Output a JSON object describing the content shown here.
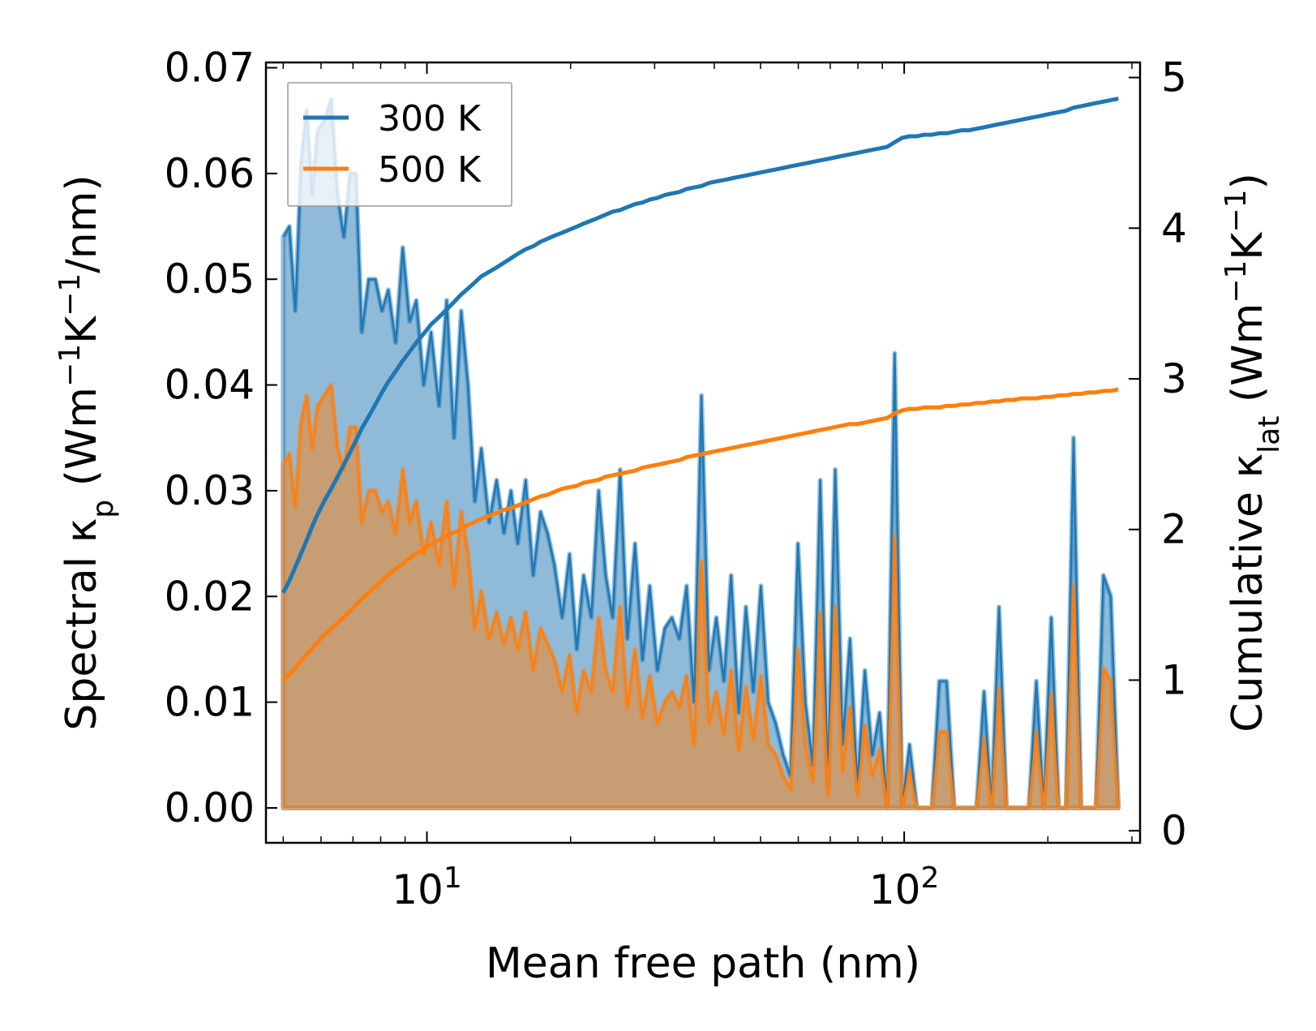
{
  "chart_data": {
    "type": "line",
    "xscale": "log",
    "xlabel": "Mean free path (nm)",
    "ylabel_left": {
      "main": "Spectral κ",
      "sub": "p",
      "unit_open": " (Wm",
      "sup1": "−1",
      "mid": "K",
      "sup2": "−1",
      "unit_close": "/nm)"
    },
    "ylabel_right": {
      "main": "Cumulative κ",
      "sub": "lat",
      "unit_open": " (Wm",
      "sup1": "−1",
      "mid": "K",
      "sup2": "−1",
      "unit_close": ")"
    },
    "xlim": [
      4.6,
      312
    ],
    "ylim_left": [
      -0.0033,
      0.0705
    ],
    "ylim_right": [
      -0.08,
      5.1
    ],
    "x_ticks": [
      {
        "value": 10,
        "base": "10",
        "exp": "1"
      },
      {
        "value": 100,
        "base": "10",
        "exp": "2"
      }
    ],
    "y_left_ticks": [
      "0.00",
      "0.01",
      "0.02",
      "0.03",
      "0.04",
      "0.05",
      "0.06",
      "0.07"
    ],
    "y_left_tick_values": [
      0,
      0.01,
      0.02,
      0.03,
      0.04,
      0.05,
      0.06,
      0.07
    ],
    "y_right_ticks": [
      "0",
      "1",
      "2",
      "3",
      "4",
      "5"
    ],
    "y_right_tick_values": [
      0,
      1,
      2,
      3,
      4,
      5
    ],
    "legend_position": "upper left",
    "series": [
      {
        "name": "300 K",
        "color": "#1f77b4",
        "fill_color": "#1f77b4",
        "x": [
          5.0,
          5.15,
          5.3,
          5.45,
          5.6,
          5.75,
          5.9,
          6.1,
          6.3,
          6.5,
          6.7,
          6.9,
          7.1,
          7.3,
          7.55,
          7.8,
          8.05,
          8.3,
          8.6,
          8.9,
          9.2,
          9.5,
          9.85,
          10.2,
          10.6,
          11.0,
          11.4,
          11.8,
          12.2,
          12.6,
          13.0,
          13.5,
          14.0,
          14.5,
          15.0,
          15.5,
          16.1,
          16.7,
          17.3,
          17.9,
          18.5,
          19.2,
          19.9,
          20.6,
          21.3,
          22.1,
          22.9,
          23.7,
          24.5,
          25.4,
          26.3,
          27.3,
          28.3,
          29.3,
          30.4,
          31.5,
          32.6,
          33.8,
          35.0,
          36.3,
          37.6,
          39.0,
          40.4,
          41.9,
          43.4,
          45.0,
          46.6,
          48.3,
          50.1,
          51.9,
          53.8,
          55.8,
          57.8,
          59.9,
          62.1,
          64.4,
          66.7,
          69.2,
          71.7,
          74.3,
          77.0,
          79.8,
          82.7,
          85.7,
          88.8,
          92.1,
          95.5,
          99.0,
          102.6,
          106.3,
          110.2,
          114.3,
          118.5,
          122.8,
          127.3,
          132.0,
          136.8,
          141.8,
          147.0,
          152.4,
          158.0,
          163.8,
          169.8,
          176.0,
          182.5,
          189.2,
          196.1,
          203.3,
          210.7,
          218.4,
          226.4,
          234.7,
          243.3,
          252.2,
          261.4,
          271.0,
          281.0
        ],
        "spectral": [
          0.054,
          0.055,
          0.047,
          0.061,
          0.066,
          0.058,
          0.064,
          0.065,
          0.067,
          0.058,
          0.054,
          0.06,
          0.06,
          0.045,
          0.05,
          0.05,
          0.047,
          0.049,
          0.044,
          0.053,
          0.046,
          0.048,
          0.04,
          0.045,
          0.038,
          0.048,
          0.035,
          0.047,
          0.04,
          0.029,
          0.034,
          0.027,
          0.031,
          0.026,
          0.03,
          0.025,
          0.031,
          0.022,
          0.028,
          0.026,
          0.023,
          0.018,
          0.024,
          0.015,
          0.022,
          0.018,
          0.03,
          0.022,
          0.018,
          0.032,
          0.016,
          0.025,
          0.014,
          0.021,
          0.013,
          0.017,
          0.018,
          0.016,
          0.021,
          0.01,
          0.039,
          0.013,
          0.018,
          0.012,
          0.022,
          0.009,
          0.019,
          0.011,
          0.021,
          0.01,
          0.008,
          0.005,
          0.003,
          0.025,
          0.01,
          0.004,
          0.031,
          0.002,
          0.032,
          0.006,
          0.016,
          0.002,
          0.013,
          0.005,
          0.009,
          0.0,
          0.043,
          0.0,
          0.006,
          0.0,
          0.0,
          0.0,
          0.012,
          0.012,
          0.0,
          0.0,
          0.0,
          0.0,
          0.011,
          0.0,
          0.019,
          0.0,
          0.0,
          0.0,
          0.0,
          0.012,
          0.0,
          0.018,
          0.0,
          0.0,
          0.035,
          0.0,
          0.0,
          0.0,
          0.022,
          0.02,
          0.0
        ],
        "cumulative": [
          1.58,
          1.66,
          1.75,
          1.84,
          1.93,
          2.02,
          2.1,
          2.19,
          2.27,
          2.35,
          2.43,
          2.51,
          2.59,
          2.67,
          2.75,
          2.83,
          2.91,
          2.98,
          3.05,
          3.12,
          3.18,
          3.24,
          3.3,
          3.36,
          3.41,
          3.46,
          3.51,
          3.56,
          3.6,
          3.64,
          3.68,
          3.71,
          3.74,
          3.77,
          3.8,
          3.83,
          3.86,
          3.88,
          3.91,
          3.93,
          3.95,
          3.97,
          3.99,
          4.01,
          4.03,
          4.05,
          4.07,
          4.09,
          4.11,
          4.12,
          4.14,
          4.16,
          4.17,
          4.19,
          4.2,
          4.22,
          4.23,
          4.24,
          4.26,
          4.27,
          4.28,
          4.3,
          4.31,
          4.32,
          4.33,
          4.34,
          4.35,
          4.36,
          4.37,
          4.38,
          4.39,
          4.4,
          4.41,
          4.42,
          4.43,
          4.44,
          4.45,
          4.46,
          4.47,
          4.48,
          4.49,
          4.5,
          4.51,
          4.52,
          4.53,
          4.54,
          4.57,
          4.6,
          4.61,
          4.61,
          4.62,
          4.62,
          4.63,
          4.63,
          4.64,
          4.65,
          4.65,
          4.66,
          4.67,
          4.68,
          4.69,
          4.7,
          4.71,
          4.72,
          4.73,
          4.74,
          4.75,
          4.76,
          4.77,
          4.78,
          4.8,
          4.81,
          4.82,
          4.83,
          4.84,
          4.85,
          4.86
        ]
      },
      {
        "name": "500 K",
        "color": "#ff7f0e",
        "fill_color": "#ff7f0e",
        "x": [
          5.0,
          5.15,
          5.3,
          5.45,
          5.6,
          5.75,
          5.9,
          6.1,
          6.3,
          6.5,
          6.7,
          6.9,
          7.1,
          7.3,
          7.55,
          7.8,
          8.05,
          8.3,
          8.6,
          8.9,
          9.2,
          9.5,
          9.85,
          10.2,
          10.6,
          11.0,
          11.4,
          11.8,
          12.2,
          12.6,
          13.0,
          13.5,
          14.0,
          14.5,
          15.0,
          15.5,
          16.1,
          16.7,
          17.3,
          17.9,
          18.5,
          19.2,
          19.9,
          20.6,
          21.3,
          22.1,
          22.9,
          23.7,
          24.5,
          25.4,
          26.3,
          27.3,
          28.3,
          29.3,
          30.4,
          31.5,
          32.6,
          33.8,
          35.0,
          36.3,
          37.6,
          39.0,
          40.4,
          41.9,
          43.4,
          45.0,
          46.6,
          48.3,
          50.1,
          51.9,
          53.8,
          55.8,
          57.8,
          59.9,
          62.1,
          64.4,
          66.7,
          69.2,
          71.7,
          74.3,
          77.0,
          79.8,
          82.7,
          85.7,
          88.8,
          92.1,
          95.5,
          99.0,
          102.6,
          106.3,
          110.2,
          114.3,
          118.5,
          122.8,
          127.3,
          132.0,
          136.8,
          141.8,
          147.0,
          152.4,
          158.0,
          163.8,
          169.8,
          176.0,
          182.5,
          189.2,
          196.1,
          203.3,
          210.7,
          218.4,
          226.4,
          234.7,
          243.3,
          252.2,
          261.4,
          271.0,
          281.0
        ],
        "spectral": [
          0.0325,
          0.0335,
          0.0285,
          0.0365,
          0.039,
          0.034,
          0.038,
          0.039,
          0.04,
          0.034,
          0.032,
          0.036,
          0.036,
          0.027,
          0.03,
          0.03,
          0.028,
          0.029,
          0.026,
          0.032,
          0.027,
          0.029,
          0.024,
          0.027,
          0.023,
          0.029,
          0.021,
          0.028,
          0.024,
          0.017,
          0.0205,
          0.016,
          0.0185,
          0.0155,
          0.018,
          0.015,
          0.0185,
          0.013,
          0.017,
          0.0155,
          0.014,
          0.011,
          0.0145,
          0.009,
          0.013,
          0.011,
          0.018,
          0.013,
          0.011,
          0.019,
          0.0095,
          0.015,
          0.0085,
          0.0125,
          0.008,
          0.01,
          0.011,
          0.0095,
          0.0125,
          0.006,
          0.0233,
          0.008,
          0.011,
          0.007,
          0.013,
          0.0055,
          0.0115,
          0.0065,
          0.0125,
          0.006,
          0.005,
          0.003,
          0.0018,
          0.015,
          0.006,
          0.0025,
          0.0185,
          0.0012,
          0.019,
          0.0035,
          0.0095,
          0.0012,
          0.0078,
          0.003,
          0.0055,
          0.0,
          0.0258,
          0.0,
          0.0036,
          0.0,
          0.0,
          0.0,
          0.0072,
          0.0072,
          0.0,
          0.0,
          0.0,
          0.0,
          0.0066,
          0.0,
          0.0114,
          0.0,
          0.0,
          0.0,
          0.0,
          0.0072,
          0.0,
          0.0108,
          0.0,
          0.0,
          0.021,
          0.0,
          0.0,
          0.0,
          0.0132,
          0.012,
          0.0
        ],
        "cumulative": [
          1.0,
          1.04,
          1.08,
          1.13,
          1.17,
          1.21,
          1.25,
          1.3,
          1.34,
          1.38,
          1.42,
          1.46,
          1.5,
          1.54,
          1.58,
          1.62,
          1.66,
          1.7,
          1.74,
          1.77,
          1.81,
          1.84,
          1.87,
          1.9,
          1.93,
          1.96,
          1.98,
          2.0,
          2.03,
          2.05,
          2.07,
          2.09,
          2.11,
          2.13,
          2.14,
          2.16,
          2.18,
          2.2,
          2.22,
          2.23,
          2.25,
          2.27,
          2.28,
          2.29,
          2.31,
          2.32,
          2.33,
          2.35,
          2.36,
          2.37,
          2.38,
          2.39,
          2.41,
          2.42,
          2.43,
          2.44,
          2.45,
          2.46,
          2.48,
          2.49,
          2.5,
          2.51,
          2.52,
          2.53,
          2.54,
          2.55,
          2.56,
          2.57,
          2.58,
          2.59,
          2.6,
          2.61,
          2.62,
          2.63,
          2.64,
          2.65,
          2.66,
          2.67,
          2.68,
          2.69,
          2.7,
          2.7,
          2.71,
          2.72,
          2.73,
          2.74,
          2.77,
          2.79,
          2.8,
          2.8,
          2.81,
          2.81,
          2.81,
          2.82,
          2.82,
          2.83,
          2.83,
          2.84,
          2.84,
          2.85,
          2.85,
          2.86,
          2.86,
          2.87,
          2.87,
          2.87,
          2.88,
          2.88,
          2.89,
          2.89,
          2.9,
          2.9,
          2.91,
          2.91,
          2.92,
          2.92,
          2.93
        ]
      }
    ]
  }
}
